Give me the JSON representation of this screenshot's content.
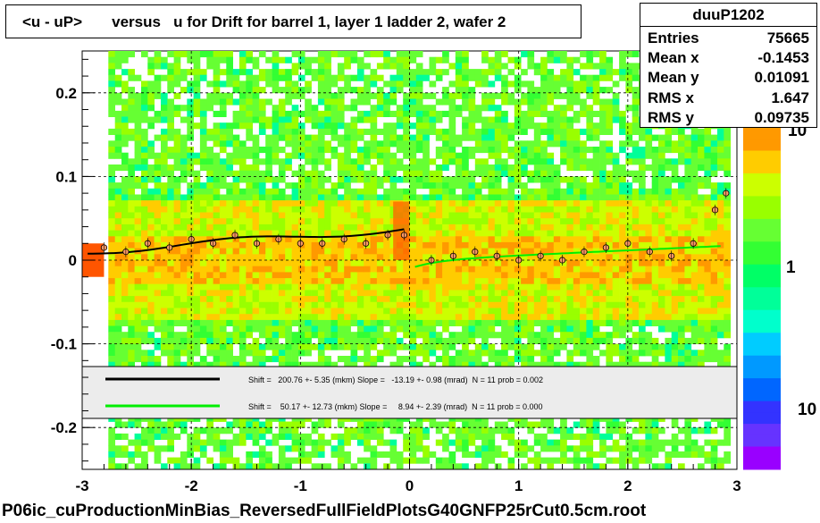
{
  "title": "<u - uP>       versus   u for Drift for barrel 1, layer 1 ladder 2, wafer 2",
  "stats": {
    "name": "duuP1202",
    "rows": [
      {
        "key": "Entries",
        "value": "75665"
      },
      {
        "key": "Mean x",
        "value": "-0.1453"
      },
      {
        "key": "Mean y",
        "value": "0.01091"
      },
      {
        "key": "RMS x",
        "value": "1.647"
      },
      {
        "key": "RMS y",
        "value": "0.09735"
      }
    ]
  },
  "bottom_label": "P06ic_cuProductionMinBias_ReversedFullFieldPlotsG40GNFP25rCut0.5cm.root",
  "colorbar": {
    "labels": [
      "10",
      "1",
      "10"
    ],
    "colors": [
      "#ff9900",
      "#ffcc00",
      "#ccff00",
      "#99ff00",
      "#66ff33",
      "#33ff33",
      "#00ff66",
      "#00ff99",
      "#00ffcc",
      "#00ccff",
      "#0099ff",
      "#0066ff",
      "#3333ff",
      "#6633ff",
      "#9900ff"
    ]
  },
  "colors": {
    "fit_black": "#000000",
    "fit_green": "#00ee00",
    "points_face": "#ff9966"
  },
  "chart_data": {
    "type": "scatter",
    "xlim": [
      -3,
      3
    ],
    "ylim": [
      -0.25,
      0.25
    ],
    "x_ticks": [
      "-3",
      "-2",
      "-1",
      "0",
      "1",
      "2",
      "3"
    ],
    "y_ticks": [
      "-0.2",
      "-0.1",
      "0",
      "0.1",
      "0.2"
    ],
    "grid": true,
    "series": [
      {
        "values": [
          [
            -2.8,
            0.015
          ],
          [
            -2.6,
            0.01
          ],
          [
            -2.4,
            0.02
          ],
          [
            -2.2,
            0.015
          ],
          [
            -2.0,
            0.025
          ],
          [
            -1.8,
            0.02
          ],
          [
            -1.6,
            0.03
          ],
          [
            -1.4,
            0.02
          ],
          [
            -1.2,
            0.025
          ],
          [
            -1.0,
            0.02
          ],
          [
            -0.8,
            0.02
          ],
          [
            -0.6,
            0.025
          ],
          [
            -0.4,
            0.02
          ],
          [
            -0.2,
            0.03
          ],
          [
            -0.05,
            0.03
          ],
          [
            0.2,
            0.0
          ],
          [
            0.4,
            0.005
          ],
          [
            0.6,
            0.01
          ],
          [
            0.8,
            0.005
          ],
          [
            1.0,
            0.0
          ],
          [
            1.2,
            0.005
          ],
          [
            1.4,
            0.0
          ],
          [
            1.6,
            0.01
          ],
          [
            1.8,
            0.015
          ],
          [
            2.0,
            0.02
          ],
          [
            2.2,
            0.01
          ],
          [
            2.4,
            0.005
          ],
          [
            2.6,
            0.02
          ],
          [
            2.8,
            0.06
          ],
          [
            2.9,
            0.08
          ]
        ]
      }
    ],
    "fits": [
      {
        "color": "black",
        "text": "Shift =   200.76 +- 5.35 (mkm) Slope =   -13.19 +- 0.98 (mrad)  N = 11 prob = 0.002"
      },
      {
        "color": "green",
        "text": "Shift =    50.17 +- 12.73 (mkm) Slope =     8.94 +- 2.39 (mrad)  N = 11 prob = 0.000"
      }
    ]
  }
}
